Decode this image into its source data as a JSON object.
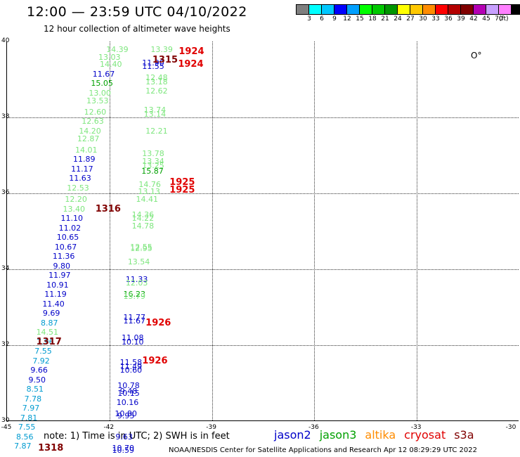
{
  "title": "12:00 — 23:59 UTC 04/10/2022",
  "subtitle": "12 hour collection of altimeter wave heights",
  "legend": {
    "colors": [
      "#7f7f7f",
      "#00ffff",
      "#00c8ff",
      "#0000ff",
      "#00a0ff",
      "#00ff00",
      "#00c800",
      "#009600",
      "#ffff00",
      "#ffc800",
      "#ff8c00",
      "#ff0000",
      "#b40000",
      "#800000",
      "#b400b4",
      "#c8a0ff",
      "#ff80ff",
      "#000000"
    ],
    "labels": [
      "3",
      "6",
      "9",
      "12",
      "15",
      "18",
      "21",
      "24",
      "27",
      "30",
      "33",
      "36",
      "39",
      "42",
      "45",
      "70"
    ],
    "unit": "(ft)"
  },
  "map": {
    "lon_ticks": [
      "-45",
      "-42",
      "-39",
      "-36",
      "-33",
      "-30"
    ],
    "lat_ticks": [
      "40",
      "38",
      "36",
      "34",
      "32",
      "30"
    ]
  },
  "observations": [
    {
      "lon": -41.75,
      "lat": 39.8,
      "v": "14.39",
      "c": "#7ee67e"
    },
    {
      "lon": -41.98,
      "lat": 39.6,
      "v": "13.03",
      "c": "#7ee67e"
    },
    {
      "lon": -41.94,
      "lat": 39.4,
      "v": "14.40",
      "c": "#7ee67e"
    },
    {
      "lon": -42.15,
      "lat": 39.15,
      "v": "11.67",
      "c": "#0000c8"
    },
    {
      "lon": -42.2,
      "lat": 38.9,
      "v": "15.05",
      "c": "#00a000"
    },
    {
      "lon": -42.26,
      "lat": 38.65,
      "v": "13.00",
      "c": "#7ee67e"
    },
    {
      "lon": -42.33,
      "lat": 38.45,
      "v": "13.53",
      "c": "#7ee67e"
    },
    {
      "lon": -42.4,
      "lat": 38.15,
      "v": "12.60",
      "c": "#7ee67e"
    },
    {
      "lon": -42.47,
      "lat": 37.9,
      "v": "12.63",
      "c": "#7ee67e"
    },
    {
      "lon": -42.55,
      "lat": 37.65,
      "v": "14.20",
      "c": "#7ee67e"
    },
    {
      "lon": -42.6,
      "lat": 37.45,
      "v": "12.87",
      "c": "#7ee67e"
    },
    {
      "lon": -42.66,
      "lat": 37.15,
      "v": "14.01",
      "c": "#7ee67e"
    },
    {
      "lon": -42.72,
      "lat": 36.9,
      "v": "11.89",
      "c": "#0000c8"
    },
    {
      "lon": -42.78,
      "lat": 36.65,
      "v": "11.17",
      "c": "#0000c8"
    },
    {
      "lon": -42.84,
      "lat": 36.4,
      "v": "11.63",
      "c": "#0000c8"
    },
    {
      "lon": -42.9,
      "lat": 36.15,
      "v": "12.53",
      "c": "#7ee67e"
    },
    {
      "lon": -42.96,
      "lat": 35.85,
      "v": "12.20",
      "c": "#7ee67e"
    },
    {
      "lon": -43.02,
      "lat": 35.6,
      "v": "13.40",
      "c": "#7ee67e"
    },
    {
      "lon": -43.08,
      "lat": 35.35,
      "v": "11.10",
      "c": "#0000c8"
    },
    {
      "lon": -43.14,
      "lat": 35.1,
      "v": "11.02",
      "c": "#0000c8"
    },
    {
      "lon": -43.2,
      "lat": 34.85,
      "v": "10.65",
      "c": "#0000c8"
    },
    {
      "lon": -43.26,
      "lat": 34.6,
      "v": "10.67",
      "c": "#0000c8"
    },
    {
      "lon": -43.32,
      "lat": 34.35,
      "v": "11.36",
      "c": "#0000c8"
    },
    {
      "lon": -43.38,
      "lat": 34.1,
      "v": "9.80",
      "c": "#0000c8"
    },
    {
      "lon": -43.44,
      "lat": 33.85,
      "v": "11.97",
      "c": "#0000c8"
    },
    {
      "lon": -43.5,
      "lat": 33.6,
      "v": "10.91",
      "c": "#0000c8"
    },
    {
      "lon": -43.56,
      "lat": 33.35,
      "v": "11.19",
      "c": "#0000c8"
    },
    {
      "lon": -43.62,
      "lat": 33.1,
      "v": "11.40",
      "c": "#0000c8"
    },
    {
      "lon": -43.68,
      "lat": 32.85,
      "v": "9.69",
      "c": "#0000c8"
    },
    {
      "lon": -43.74,
      "lat": 32.6,
      "v": "8.87",
      "c": "#009bd0"
    },
    {
      "lon": -43.8,
      "lat": 32.35,
      "v": "14.51",
      "c": "#7ee67e"
    },
    {
      "lon": -43.86,
      "lat": 32.1,
      "v": "7.96",
      "c": "#009bd0"
    },
    {
      "lon": -43.92,
      "lat": 31.85,
      "v": "7.55",
      "c": "#009bd0"
    },
    {
      "lon": -43.98,
      "lat": 31.6,
      "v": "7.92",
      "c": "#009bd0"
    },
    {
      "lon": -44.04,
      "lat": 31.35,
      "v": "9.66",
      "c": "#0000c8"
    },
    {
      "lon": -44.1,
      "lat": 31.1,
      "v": "9.50",
      "c": "#0000c8"
    },
    {
      "lon": -44.16,
      "lat": 30.85,
      "v": "8.51",
      "c": "#009bd0"
    },
    {
      "lon": -44.22,
      "lat": 30.6,
      "v": "7.78",
      "c": "#009bd0"
    },
    {
      "lon": -44.28,
      "lat": 30.35,
      "v": "7.97",
      "c": "#009bd0"
    },
    {
      "lon": -44.34,
      "lat": 30.1,
      "v": "7.81",
      "c": "#009bd0"
    },
    {
      "lon": -44.4,
      "lat": 29.85,
      "v": "7.55",
      "c": "#009bd0"
    },
    {
      "lon": -44.46,
      "lat": 29.6,
      "v": "8.56",
      "c": "#009bd0"
    },
    {
      "lon": -44.52,
      "lat": 29.35,
      "v": "7.87",
      "c": "#009bd0"
    },
    {
      "lon": -40.45,
      "lat": 39.8,
      "v": "13.39",
      "c": "#7ee67e"
    },
    {
      "lon": -40.7,
      "lat": 39.45,
      "v": "11.90",
      "c": "#0000c8"
    },
    {
      "lon": -40.7,
      "lat": 39.35,
      "v": "11.55",
      "c": "#0000c8"
    },
    {
      "lon": -40.6,
      "lat": 39.05,
      "v": "12.48",
      "c": "#7ee67e"
    },
    {
      "lon": -40.6,
      "lat": 38.95,
      "v": "13.18",
      "c": "#7ee67e"
    },
    {
      "lon": -40.6,
      "lat": 38.7,
      "v": "12.62",
      "c": "#7ee67e"
    },
    {
      "lon": -40.65,
      "lat": 38.2,
      "v": "13.74",
      "c": "#7ee67e"
    },
    {
      "lon": -40.65,
      "lat": 38.1,
      "v": "13.14",
      "c": "#7ee67e"
    },
    {
      "lon": -40.6,
      "lat": 37.65,
      "v": "12.21",
      "c": "#7ee67e"
    },
    {
      "lon": -40.7,
      "lat": 37.05,
      "v": "13.78",
      "c": "#7ee67e"
    },
    {
      "lon": -40.7,
      "lat": 36.85,
      "v": "13.34",
      "c": "#7ee67e"
    },
    {
      "lon": -40.7,
      "lat": 36.75,
      "v": "13.25",
      "c": "#7ee67e"
    },
    {
      "lon": -40.72,
      "lat": 36.6,
      "v": "15.87",
      "c": "#00a000"
    },
    {
      "lon": -40.8,
      "lat": 36.25,
      "v": "14.76",
      "c": "#7ee67e"
    },
    {
      "lon": -40.82,
      "lat": 36.05,
      "v": "13.13",
      "c": "#7ee67e"
    },
    {
      "lon": -40.88,
      "lat": 35.85,
      "v": "14.41",
      "c": "#7ee67e"
    },
    {
      "lon": -41.0,
      "lat": 35.45,
      "v": "14.36",
      "c": "#7ee67e"
    },
    {
      "lon": -41.0,
      "lat": 35.35,
      "v": "14.22",
      "c": "#7ee67e"
    },
    {
      "lon": -41.0,
      "lat": 35.15,
      "v": "14.78",
      "c": "#7ee67e"
    },
    {
      "lon": -41.05,
      "lat": 34.6,
      "v": "12.55",
      "c": "#7ee67e"
    },
    {
      "lon": -41.05,
      "lat": 34.55,
      "v": "12.95",
      "c": "#7ee67e"
    },
    {
      "lon": -41.12,
      "lat": 34.2,
      "v": "13.54",
      "c": "#7ee67e"
    },
    {
      "lon": -41.18,
      "lat": 33.75,
      "v": "11.33",
      "c": "#0000c8"
    },
    {
      "lon": -41.18,
      "lat": 33.65,
      "v": "12.03",
      "c": "#7ee67e"
    },
    {
      "lon": -41.25,
      "lat": 33.35,
      "v": "16.23",
      "c": "#00a000"
    },
    {
      "lon": -41.25,
      "lat": 33.3,
      "v": "15.79",
      "c": "#7ee67e"
    },
    {
      "lon": -41.25,
      "lat": 32.75,
      "v": "11.77",
      "c": "#0000c8"
    },
    {
      "lon": -41.25,
      "lat": 32.65,
      "v": "11.67",
      "c": "#0000c8"
    },
    {
      "lon": -41.3,
      "lat": 32.2,
      "v": "11.08",
      "c": "#0000c8"
    },
    {
      "lon": -41.3,
      "lat": 32.1,
      "v": "10.10",
      "c": "#0000c8"
    },
    {
      "lon": -41.35,
      "lat": 31.55,
      "v": "11.58",
      "c": "#0000c8"
    },
    {
      "lon": -41.35,
      "lat": 31.45,
      "v": "11.49",
      "c": "#0000c8"
    },
    {
      "lon": -41.35,
      "lat": 31.35,
      "v": "10.60",
      "c": "#0000c8"
    },
    {
      "lon": -41.42,
      "lat": 30.95,
      "v": "10.78",
      "c": "#0000c8"
    },
    {
      "lon": -41.42,
      "lat": 30.8,
      "v": "9.48",
      "c": "#0000c8"
    },
    {
      "lon": -41.42,
      "lat": 30.75,
      "v": "10.15",
      "c": "#0000c8"
    },
    {
      "lon": -41.45,
      "lat": 30.5,
      "v": "10.16",
      "c": "#0000c8"
    },
    {
      "lon": -41.5,
      "lat": 30.2,
      "v": "10.80",
      "c": "#0000c8"
    },
    {
      "lon": -41.5,
      "lat": 30.15,
      "v": "9.95",
      "c": "#0000c8"
    },
    {
      "lon": -41.55,
      "lat": 29.6,
      "v": "9.63",
      "c": "#0000c8"
    },
    {
      "lon": -41.58,
      "lat": 29.3,
      "v": "10.70",
      "c": "#0000c8"
    },
    {
      "lon": -41.58,
      "lat": 29.25,
      "v": "10.59",
      "c": "#0000c8"
    }
  ],
  "times": [
    {
      "lon": -40.35,
      "lat": 39.52,
      "t": "1315",
      "c": "#800000"
    },
    {
      "lon": -42.02,
      "lat": 35.6,
      "t": "1316",
      "c": "#800000"
    },
    {
      "lon": -43.75,
      "lat": 32.1,
      "t": "1317",
      "c": "#800000"
    },
    {
      "lon": -43.7,
      "lat": 29.3,
      "t": "1318",
      "c": "#800000"
    },
    {
      "lon": -39.58,
      "lat": 39.75,
      "t": "1924",
      "c": "#e00000"
    },
    {
      "lon": -39.6,
      "lat": 39.4,
      "t": "1924",
      "c": "#e00000"
    },
    {
      "lon": -39.85,
      "lat": 36.3,
      "t": "1925",
      "c": "#e00000"
    },
    {
      "lon": -39.85,
      "lat": 36.1,
      "t": "1925",
      "c": "#e00000"
    },
    {
      "lon": -40.55,
      "lat": 32.6,
      "t": "1926",
      "c": "#e00000"
    },
    {
      "lon": -40.65,
      "lat": 31.6,
      "t": "1926",
      "c": "#e00000"
    }
  ],
  "island_label": "O°",
  "note": "note:  1) Time is in UTC;  2) SWH is in feet",
  "satellites": [
    {
      "name": "jason2",
      "color": "#0000c8"
    },
    {
      "name": "jason3",
      "color": "#00a000"
    },
    {
      "name": "altika",
      "color": "#ff8c00"
    },
    {
      "name": "cryosat",
      "color": "#e00000"
    },
    {
      "name": "s3a",
      "color": "#800000"
    }
  ],
  "footer": "NOAA/NESDIS Center for Satellite Applications and Research    Apr 12 08:29:29 UTC 2022"
}
